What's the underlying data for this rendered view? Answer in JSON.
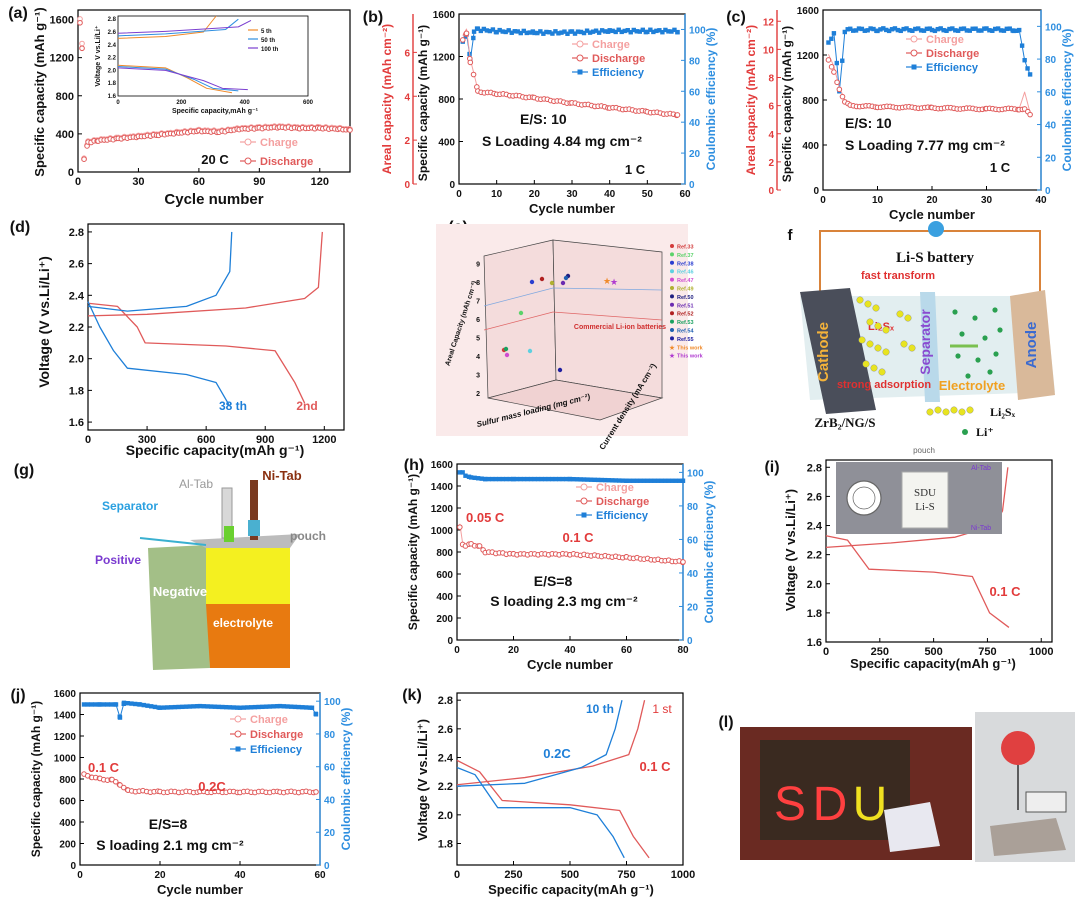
{
  "colors": {
    "charge": "#f4a0a0",
    "discharge": "#e05a5a",
    "efficiency": "#1e7fd8",
    "red_axis": "#e23b3b",
    "blue_axis": "#2f8fe0",
    "orange": "#f08a2a",
    "blue2": "#2f8fe0",
    "purple": "#7b3fd0"
  },
  "panels": [
    {
      "letter": "(a)",
      "type": "cycling",
      "inset": {
        "xlabel": "Specific capacity,mAh g⁻¹",
        "ylabel": "Voltage V vs.Li/Li⁺",
        "xticks": [
          "0",
          "200",
          "400",
          "600"
        ],
        "yticks": [
          "1.6",
          "1.8",
          "2.0",
          "2.2",
          "2.4",
          "2.6",
          "2.8"
        ],
        "legend": [
          "5 th",
          "50 th",
          "100 th"
        ]
      },
      "xlabel": "Cycle number",
      "ylabel": "Specific capacity (mAh g⁻¹)",
      "xticks": [
        "0",
        "30",
        "60",
        "90",
        "120"
      ],
      "yticks": [
        "0",
        "400",
        "800",
        "1200",
        "1600"
      ],
      "legend": [
        "Charge",
        "Discharge"
      ],
      "annotations": [
        "20 C"
      ]
    },
    {
      "letter": "(b)",
      "type": "cycling3",
      "xlabel": "Cycle number",
      "ylabel": "Specific capacity (mAh g⁻¹)",
      "y2label": "Coulombic efficiency (%)",
      "y0label": "Areal capacity (mAh cm⁻²)",
      "xticks": [
        "0",
        "10",
        "20",
        "30",
        "40",
        "50",
        "60"
      ],
      "yticks": [
        "0",
        "400",
        "800",
        "1200",
        "1600"
      ],
      "y2ticks": [
        "0",
        "20",
        "40",
        "60",
        "80",
        "100"
      ],
      "y0ticks": [
        "0",
        "2",
        "4",
        "6"
      ],
      "legend": [
        "Charge",
        "Discharge",
        "Efficiency"
      ],
      "annotations": [
        "E/S:  10",
        "S Loading 4.84 mg cm⁻²",
        "1 C"
      ]
    },
    {
      "letter": "(c)",
      "type": "cycling3",
      "xlabel": "Cycle number",
      "ylabel": "Specific capacity (mAh g⁻¹)",
      "y2label": "Coulombic efficiency (%)",
      "y0label": "Areal capacity (mAh cm⁻²)",
      "xticks": [
        "0",
        "10",
        "20",
        "30",
        "40"
      ],
      "yticks": [
        "0",
        "400",
        "800",
        "1200",
        "1600"
      ],
      "y2ticks": [
        "0",
        "20",
        "40",
        "60",
        "80",
        "100"
      ],
      "y0ticks": [
        "0",
        "2",
        "4",
        "6",
        "8",
        "10",
        "12"
      ],
      "legend": [
        "Charge",
        "Discharge",
        "Efficiency"
      ],
      "annotations": [
        "E/S:  10",
        "S Loading  7.77 mg cm⁻²",
        "1 C"
      ]
    },
    {
      "letter": "(d)",
      "type": "voltage",
      "xlabel": "Specific capacity(mAh g⁻¹)",
      "ylabel": "Voltage (V vs.Li/Li⁺)",
      "xticks": [
        "0",
        "300",
        "600",
        "900",
        "1200"
      ],
      "yticks": [
        "1.6",
        "1.8",
        "2.0",
        "2.2",
        "2.4",
        "2.6",
        "2.8"
      ],
      "annotations": [
        "38 th",
        "2nd"
      ]
    },
    {
      "letter": "(e)",
      "type": "3d",
      "ylabel": "Areal Capacity (mAh cm⁻²)",
      "xlabel": "Sulfur mass loading (mg cm⁻²)",
      "zlabel": "Current density (mA cm⁻²)",
      "yticks": [
        "2",
        "3",
        "4",
        "5",
        "6",
        "7",
        "8",
        "9"
      ],
      "plane_label": "Commercial Li-ion batteries",
      "legend": [
        "Ref.33",
        "Ref.37",
        "Ref.38",
        "Ref.46",
        "Ref.47",
        "Ref.49",
        "Ref.50",
        "Ref.51",
        "Ref.52",
        "Ref.53",
        "Ref.54",
        "Ref.55",
        "This work",
        "This work"
      ]
    },
    {
      "letter": "f",
      "type": "schematic",
      "title": "Li-S battery",
      "labels": [
        "fast transform",
        "Cathode",
        "Li₂Sₓ",
        "Separator",
        "Anode",
        "Electrolyte",
        "strong adsorption",
        "ZrB₂/NG/S",
        "Li₂Sₓ",
        "Li⁺"
      ]
    },
    {
      "letter": "(g)",
      "type": "pouch",
      "labels": [
        "Al-Tab",
        "Ni-Tab",
        "Separator",
        "pouch",
        "Positive",
        "Negative",
        "electrolyte"
      ]
    },
    {
      "letter": "(h)",
      "type": "cycling2",
      "xlabel": "Cycle number",
      "ylabel": "Specific capacity (mAh g⁻¹)",
      "y2label": "Coulombic efficiency (%)",
      "xticks": [
        "0",
        "20",
        "40",
        "60",
        "80"
      ],
      "yticks": [
        "0",
        "200",
        "400",
        "600",
        "800",
        "1000",
        "1200",
        "1400",
        "1600"
      ],
      "y2ticks": [
        "0",
        "20",
        "40",
        "60",
        "80",
        "100"
      ],
      "legend": [
        "Charge",
        "Discharge",
        "Efficiency"
      ],
      "annotations": [
        "0.05 C",
        "0.1 C",
        "E/S=8",
        "S loading 2.3 mg cm⁻²"
      ]
    },
    {
      "letter": "(i)",
      "type": "voltage-inset",
      "xlabel": "Specific capacity(mAh g⁻¹)",
      "ylabel": "Voltage (V vs.Li/Li⁺)",
      "xticks": [
        "0",
        "250",
        "500",
        "750",
        "1000"
      ],
      "yticks": [
        "1.6",
        "1.8",
        "2.0",
        "2.2",
        "2.4",
        "2.6",
        "2.8"
      ],
      "annotations": [
        "0.1 C"
      ],
      "photo": {
        "top": "pouch",
        "tab1": "Al-Tab",
        "tab2": "Ni-Tab",
        "text": "SDU\nLi-S"
      }
    },
    {
      "letter": "(j)",
      "type": "cycling2",
      "xlabel": "Cycle number",
      "ylabel": "Specific capacity (mAh g⁻¹)",
      "y2label": "Coulombic efficiency (%)",
      "xticks": [
        "0",
        "20",
        "40",
        "60"
      ],
      "yticks": [
        "0",
        "200",
        "400",
        "600",
        "800",
        "1000",
        "1200",
        "1400",
        "1600"
      ],
      "y2ticks": [
        "0",
        "20",
        "40",
        "60",
        "80",
        "100"
      ],
      "legend": [
        "Charge",
        "Discharge",
        "Efficiency"
      ],
      "annotations": [
        "0.1 C",
        "0.2C",
        "E/S=8",
        "S loading 2.1 mg cm⁻²"
      ]
    },
    {
      "letter": "(k)",
      "type": "voltage2",
      "xlabel": "Specific capacity(mAh g⁻¹)",
      "ylabel": "Voltage (V vs.Li/Li⁺)",
      "xticks": [
        "0",
        "250",
        "500",
        "750",
        "1000"
      ],
      "yticks": [
        "1.8",
        "2.0",
        "2.2",
        "2.4",
        "2.6",
        "2.8"
      ],
      "annotations": [
        "10 th",
        "1 st",
        "0.2C",
        "0.1 C"
      ]
    },
    {
      "letter": "(l)",
      "type": "photo",
      "sign_text": "SDU"
    }
  ],
  "chart_data": [
    {
      "type": "line",
      "title": "",
      "xlabel": "Cycle number",
      "ylabel": "Specific capacity (mAh g⁻¹)",
      "xlim": [
        0,
        135
      ],
      "ylim": [
        0,
        1700
      ],
      "series": [
        {
          "name": "Charge",
          "x": [
            1,
            2,
            3,
            5,
            10,
            20,
            30,
            40,
            50,
            60,
            70,
            80,
            90,
            100,
            110,
            120,
            130,
            135
          ],
          "y": [
            1600,
            1350,
            150,
            320,
            340,
            360,
            380,
            400,
            420,
            440,
            430,
            460,
            470,
            480,
            470,
            470,
            460,
            450
          ]
        },
        {
          "name": "Discharge",
          "x": [
            1,
            2,
            3,
            5,
            10,
            20,
            30,
            40,
            50,
            60,
            70,
            80,
            90,
            100,
            110,
            120,
            130,
            135
          ],
          "y": [
            1560,
            1300,
            140,
            310,
            330,
            350,
            370,
            390,
            410,
            430,
            420,
            450,
            460,
            470,
            460,
            460,
            450,
            440
          ]
        }
      ]
    },
    {
      "type": "line",
      "title": "",
      "xlabel": "Cycle number",
      "ylabel": "Specific capacity (mAh g⁻¹)",
      "xlim": [
        0,
        60
      ],
      "ylim": [
        0,
        1600
      ],
      "series": [
        {
          "name": "Charge",
          "x": [
            1,
            2,
            3,
            5,
            10,
            20,
            30,
            40,
            50,
            58
          ],
          "y": [
            1390,
            1460,
            1180,
            880,
            860,
            820,
            770,
            730,
            690,
            660
          ]
        },
        {
          "name": "Discharge",
          "x": [
            1,
            2,
            3,
            5,
            10,
            20,
            30,
            40,
            50,
            58
          ],
          "y": [
            1350,
            1420,
            1150,
            870,
            850,
            810,
            760,
            720,
            680,
            650
          ]
        },
        {
          "name": "Efficiency",
          "x": [
            1,
            2,
            3,
            4,
            5,
            10,
            20,
            30,
            40,
            50,
            58
          ],
          "y": [
            92,
            97,
            80,
            99,
            100,
            99,
            98,
            98,
            99,
            99,
            99
          ]
        }
      ]
    },
    {
      "type": "line",
      "title": "",
      "xlabel": "Cycle number",
      "ylabel": "Specific capacity (mAh g⁻¹)",
      "xlim": [
        0,
        40
      ],
      "ylim": [
        0,
        1600
      ],
      "series": [
        {
          "name": "Charge",
          "x": [
            1,
            2,
            3,
            4,
            5,
            10,
            20,
            30,
            36,
            37,
            38
          ],
          "y": [
            1200,
            1100,
            920,
            800,
            760,
            750,
            740,
            730,
            730,
            870,
            680
          ]
        },
        {
          "name": "Discharge",
          "x": [
            1,
            2,
            3,
            4,
            5,
            10,
            20,
            30,
            36,
            37,
            38
          ],
          "y": [
            1150,
            1050,
            900,
            780,
            750,
            740,
            730,
            720,
            720,
            720,
            670
          ]
        },
        {
          "name": "Efficiency",
          "x": [
            1,
            2,
            3,
            4,
            5,
            10,
            20,
            30,
            35,
            36,
            37,
            38
          ],
          "y": [
            90,
            96,
            60,
            97,
            98,
            98,
            98,
            98,
            98,
            97,
            80,
            70
          ]
        }
      ]
    },
    {
      "type": "line",
      "title": "",
      "xlabel": "Specific capacity(mAh g⁻¹)",
      "ylabel": "Voltage (V vs.Li/Li⁺)",
      "xlim": [
        0,
        1300
      ],
      "ylim": [
        1.55,
        2.85
      ],
      "series": [
        {
          "name": "2nd",
          "x": [
            0,
            100,
            250,
            280,
            600,
            900,
            1050,
            1100
          ],
          "y": [
            2.35,
            2.3,
            2.15,
            2.1,
            2.1,
            2.05,
            1.8,
            1.7
          ]
        },
        {
          "name": "38 th",
          "x": [
            0,
            100,
            150,
            400,
            700,
            730
          ],
          "y": [
            2.3,
            2.15,
            1.95,
            1.9,
            1.8,
            1.7
          ]
        }
      ]
    },
    {
      "type": "scatter",
      "title": "",
      "xlabel": "Sulfur mass loading (mg cm⁻²)",
      "ylabel": "Areal Capacity (mAh cm⁻²)"
    },
    {
      "type": "line",
      "title": "",
      "xlabel": "Cycle number",
      "ylabel": "Specific capacity (mAh g⁻¹)",
      "xlim": [
        0,
        80
      ],
      "ylim": [
        0,
        1600
      ],
      "series": [
        {
          "name": "Charge",
          "x": [
            1,
            2,
            3,
            5,
            8,
            10,
            20,
            40,
            60,
            80
          ],
          "y": [
            1050,
            880,
            870,
            880,
            860,
            810,
            790,
            790,
            760,
            720
          ]
        },
        {
          "name": "Discharge",
          "x": [
            1,
            2,
            3,
            5,
            8,
            10,
            20,
            40,
            60,
            80
          ],
          "y": [
            1020,
            870,
            860,
            870,
            850,
            800,
            780,
            780,
            750,
            710
          ]
        },
        {
          "name": "Efficiency",
          "x": [
            1,
            2,
            3,
            5,
            10,
            20,
            40,
            60,
            80
          ],
          "y": [
            100,
            100,
            98,
            97,
            96,
            96,
            96,
            95,
            95
          ]
        }
      ]
    },
    {
      "type": "line",
      "title": "",
      "xlabel": "Specific capacity(mAh g⁻¹)",
      "ylabel": "Voltage (V vs.Li/Li⁺)",
      "xlim": [
        0,
        1050
      ],
      "ylim": [
        1.6,
        2.85
      ],
      "series": [
        {
          "name": "0.1 C",
          "x": [
            0,
            80,
            150,
            200,
            500,
            700,
            800,
            850
          ],
          "y": [
            2.35,
            2.3,
            2.2,
            2.1,
            2.08,
            2.05,
            1.8,
            1.7
          ]
        }
      ]
    },
    {
      "type": "line",
      "title": "",
      "xlabel": "Cycle number",
      "ylabel": "Specific capacity (mAh g⁻¹)",
      "xlim": [
        0,
        60
      ],
      "ylim": [
        0,
        1600
      ],
      "series": [
        {
          "name": "Charge",
          "x": [
            1,
            3,
            5,
            8,
            10,
            12,
            20,
            30,
            40,
            50,
            59
          ],
          "y": [
            860,
            830,
            810,
            800,
            760,
            700,
            690,
            690,
            690,
            690,
            690
          ]
        },
        {
          "name": "Discharge",
          "x": [
            1,
            3,
            5,
            8,
            10,
            12,
            20,
            30,
            40,
            50,
            59
          ],
          "y": [
            840,
            820,
            800,
            790,
            750,
            690,
            680,
            680,
            680,
            680,
            680
          ]
        },
        {
          "name": "Efficiency",
          "x": [
            1,
            5,
            9,
            10,
            11,
            15,
            20,
            30,
            40,
            50,
            58,
            59
          ],
          "y": [
            98,
            98,
            98,
            90,
            99,
            98,
            96,
            97,
            96,
            97,
            96,
            92
          ]
        }
      ]
    },
    {
      "type": "line",
      "title": "",
      "xlabel": "Specific capacity(mAh g⁻¹)",
      "ylabel": "Voltage (V vs.Li/Li⁺)",
      "xlim": [
        0,
        1000
      ],
      "ylim": [
        1.65,
        2.85
      ],
      "series": [
        {
          "name": "1 st",
          "x": [
            0,
            100,
            200,
            500,
            700,
            850
          ],
          "y": [
            2.35,
            2.15,
            2.08,
            2.05,
            1.9,
            1.7
          ]
        },
        {
          "name": "10 th",
          "x": [
            0,
            100,
            180,
            500,
            650,
            740
          ],
          "y": [
            2.3,
            2.2,
            2.05,
            2.05,
            1.95,
            1.7
          ]
        }
      ]
    }
  ]
}
